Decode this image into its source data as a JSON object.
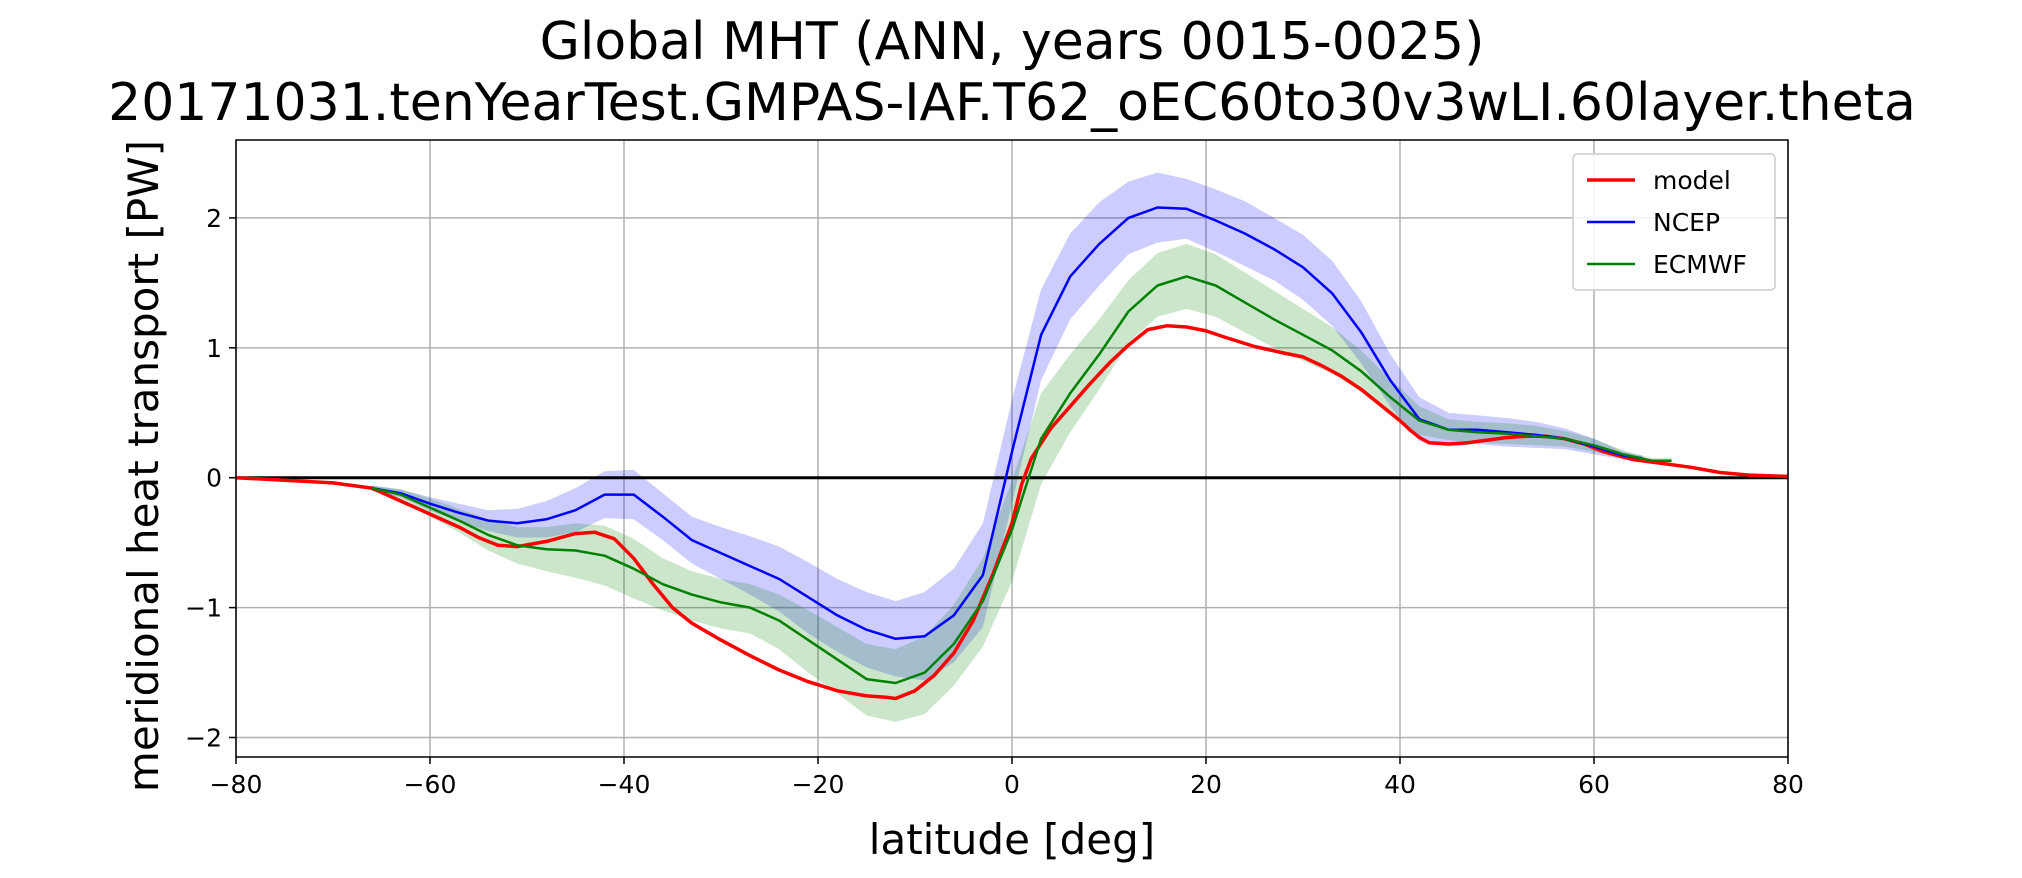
{
  "chart_data": {
    "type": "line",
    "title_line1": "Global MHT (ANN, years 0015-0025)",
    "title_line2": "20171031.tenYearTest.GMPAS-IAF.T62_oEC60to30v3wLI.60layer.theta",
    "xlabel": "latitude [deg]",
    "ylabel": "meridional heat transport [PW]",
    "xlim": [
      -80,
      80
    ],
    "ylim": [
      -2.15,
      2.6
    ],
    "xticks": [
      -80,
      -60,
      -40,
      -20,
      0,
      20,
      40,
      60,
      80
    ],
    "xtick_labels": [
      "−80",
      "−60",
      "−40",
      "−20",
      "0",
      "20",
      "40",
      "60",
      "80"
    ],
    "yticks": [
      -2,
      -1,
      0,
      1,
      2
    ],
    "ytick_labels": [
      "−2",
      "−1",
      "0",
      "1",
      "2"
    ],
    "grid": true,
    "legend_position": "top-right",
    "zero_line": true,
    "series": [
      {
        "name": "model",
        "color": "#ff0000",
        "x": [
          -80,
          -75,
          -70,
          -66,
          -63,
          -60,
          -57,
          -55,
          -53,
          -51,
          -48,
          -45,
          -43,
          -41,
          -39,
          -37,
          -35,
          -33,
          -30,
          -27,
          -24,
          -21,
          -18,
          -15,
          -13,
          -12,
          -10,
          -8,
          -6,
          -4,
          -2,
          0,
          1,
          2,
          4,
          6,
          8,
          10,
          12,
          14,
          16,
          18,
          20,
          22,
          25,
          28,
          30,
          32,
          34,
          36,
          38,
          40,
          41,
          42,
          43,
          45,
          47,
          49,
          51,
          53,
          55,
          57,
          59,
          61,
          64,
          67,
          70,
          73,
          76,
          80
        ],
        "y": [
          0,
          -0.02,
          -0.04,
          -0.08,
          -0.18,
          -0.28,
          -0.38,
          -0.46,
          -0.52,
          -0.53,
          -0.49,
          -0.43,
          -0.42,
          -0.47,
          -0.62,
          -0.82,
          -1.0,
          -1.12,
          -1.25,
          -1.37,
          -1.48,
          -1.57,
          -1.64,
          -1.68,
          -1.69,
          -1.7,
          -1.64,
          -1.52,
          -1.35,
          -1.1,
          -0.75,
          -0.35,
          -0.05,
          0.15,
          0.38,
          0.55,
          0.72,
          0.88,
          1.02,
          1.14,
          1.17,
          1.16,
          1.13,
          1.08,
          1.01,
          0.96,
          0.93,
          0.86,
          0.78,
          0.68,
          0.56,
          0.44,
          0.37,
          0.31,
          0.27,
          0.26,
          0.27,
          0.29,
          0.31,
          0.32,
          0.32,
          0.3,
          0.26,
          0.2,
          0.14,
          0.11,
          0.08,
          0.04,
          0.02,
          0.01
        ]
      },
      {
        "name": "NCEP",
        "color": "#0000ff",
        "x": [
          -66,
          -63,
          -60,
          -57,
          -54,
          -51,
          -48,
          -45,
          -42,
          -39,
          -36,
          -33,
          -30,
          -27,
          -24,
          -21,
          -18,
          -15,
          -12,
          -9,
          -6,
          -3,
          0,
          3,
          6,
          9,
          12,
          15,
          18,
          21,
          24,
          27,
          30,
          33,
          36,
          39,
          42,
          45,
          48,
          51,
          54,
          57,
          60,
          63,
          65
        ],
        "y": [
          -0.08,
          -0.12,
          -0.2,
          -0.27,
          -0.33,
          -0.35,
          -0.32,
          -0.25,
          -0.13,
          -0.13,
          -0.3,
          -0.48,
          -0.58,
          -0.68,
          -0.78,
          -0.92,
          -1.06,
          -1.17,
          -1.24,
          -1.22,
          -1.06,
          -0.75,
          0.2,
          1.1,
          1.55,
          1.8,
          2.0,
          2.08,
          2.07,
          1.98,
          1.88,
          1.76,
          1.62,
          1.42,
          1.12,
          0.75,
          0.45,
          0.37,
          0.37,
          0.35,
          0.33,
          0.3,
          0.24,
          0.17,
          0.15
        ]
      },
      {
        "name": "ECMWF",
        "color": "#008000",
        "x": [
          -66,
          -63,
          -60,
          -57,
          -54,
          -51,
          -48,
          -45,
          -42,
          -39,
          -36,
          -33,
          -30,
          -27,
          -24,
          -21,
          -18,
          -15,
          -12,
          -9,
          -6,
          -3,
          0,
          3,
          6,
          9,
          12,
          15,
          18,
          21,
          24,
          27,
          30,
          33,
          36,
          39,
          42,
          45,
          48,
          51,
          54,
          57,
          60,
          63,
          66,
          68
        ],
        "y": [
          -0.08,
          -0.13,
          -0.23,
          -0.33,
          -0.44,
          -0.52,
          -0.55,
          -0.56,
          -0.6,
          -0.7,
          -0.82,
          -0.9,
          -0.96,
          -1.0,
          -1.1,
          -1.25,
          -1.4,
          -1.55,
          -1.58,
          -1.5,
          -1.28,
          -0.95,
          -0.4,
          0.3,
          0.65,
          0.95,
          1.28,
          1.48,
          1.55,
          1.48,
          1.35,
          1.22,
          1.1,
          0.98,
          0.82,
          0.62,
          0.44,
          0.37,
          0.35,
          0.34,
          0.32,
          0.3,
          0.25,
          0.18,
          0.13,
          0.13
        ]
      }
    ],
    "bands": [
      {
        "series": "NCEP",
        "color": "#0000ff",
        "opacity": 0.2,
        "x": [
          -66,
          -63,
          -60,
          -57,
          -54,
          -51,
          -48,
          -45,
          -42,
          -39,
          -36,
          -33,
          -30,
          -27,
          -24,
          -21,
          -18,
          -15,
          -12,
          -9,
          -6,
          -3,
          0,
          3,
          6,
          9,
          12,
          15,
          18,
          21,
          24,
          27,
          30,
          33,
          36,
          39,
          42,
          45,
          48,
          51,
          54,
          57,
          60,
          63,
          65
        ],
        "upper": [
          -0.06,
          -0.09,
          -0.15,
          -0.2,
          -0.25,
          -0.24,
          -0.18,
          -0.08,
          0.05,
          0.06,
          -0.12,
          -0.3,
          -0.38,
          -0.45,
          -0.53,
          -0.65,
          -0.78,
          -0.88,
          -0.95,
          -0.88,
          -0.7,
          -0.35,
          0.6,
          1.45,
          1.88,
          2.12,
          2.28,
          2.35,
          2.3,
          2.22,
          2.13,
          2.0,
          1.87,
          1.67,
          1.36,
          0.95,
          0.62,
          0.5,
          0.48,
          0.46,
          0.43,
          0.38,
          0.3,
          0.2,
          0.17
        ],
        "lower": [
          -0.1,
          -0.15,
          -0.25,
          -0.34,
          -0.41,
          -0.46,
          -0.46,
          -0.42,
          -0.31,
          -0.32,
          -0.48,
          -0.66,
          -0.78,
          -0.9,
          -1.03,
          -1.2,
          -1.34,
          -1.46,
          -1.53,
          -1.56,
          -1.42,
          -1.15,
          -0.2,
          0.75,
          1.22,
          1.48,
          1.72,
          1.81,
          1.84,
          1.74,
          1.63,
          1.52,
          1.37,
          1.17,
          0.88,
          0.55,
          0.28,
          0.24,
          0.26,
          0.24,
          0.23,
          0.22,
          0.18,
          0.14,
          0.13
        ]
      },
      {
        "series": "ECMWF",
        "color": "#008000",
        "opacity": 0.2,
        "x": [
          -66,
          -63,
          -60,
          -57,
          -54,
          -51,
          -48,
          -45,
          -42,
          -39,
          -36,
          -33,
          -30,
          -27,
          -24,
          -21,
          -18,
          -15,
          -12,
          -9,
          -6,
          -3,
          0,
          3,
          6,
          9,
          12,
          15,
          18,
          21,
          24,
          27,
          30,
          33,
          36,
          39,
          42,
          45,
          48,
          51,
          54,
          57,
          60,
          63,
          66,
          68
        ],
        "upper": [
          -0.06,
          -0.09,
          -0.16,
          -0.24,
          -0.32,
          -0.38,
          -0.38,
          -0.35,
          -0.37,
          -0.47,
          -0.62,
          -0.72,
          -0.78,
          -0.82,
          -0.9,
          -1.02,
          -1.15,
          -1.28,
          -1.32,
          -1.22,
          -0.98,
          -0.62,
          -0.02,
          0.65,
          0.95,
          1.22,
          1.52,
          1.73,
          1.8,
          1.72,
          1.58,
          1.44,
          1.3,
          1.16,
          0.98,
          0.76,
          0.55,
          0.45,
          0.43,
          0.42,
          0.4,
          0.36,
          0.3,
          0.21,
          0.15,
          0.15
        ],
        "lower": [
          -0.1,
          -0.17,
          -0.3,
          -0.42,
          -0.56,
          -0.66,
          -0.72,
          -0.77,
          -0.83,
          -0.93,
          -1.02,
          -1.1,
          -1.16,
          -1.2,
          -1.32,
          -1.5,
          -1.66,
          -1.83,
          -1.88,
          -1.82,
          -1.6,
          -1.3,
          -0.8,
          -0.05,
          0.35,
          0.68,
          1.04,
          1.24,
          1.3,
          1.24,
          1.12,
          1.0,
          0.9,
          0.8,
          0.66,
          0.48,
          0.33,
          0.29,
          0.27,
          0.26,
          0.25,
          0.24,
          0.2,
          0.15,
          0.11,
          0.11
        ]
      }
    ]
  }
}
